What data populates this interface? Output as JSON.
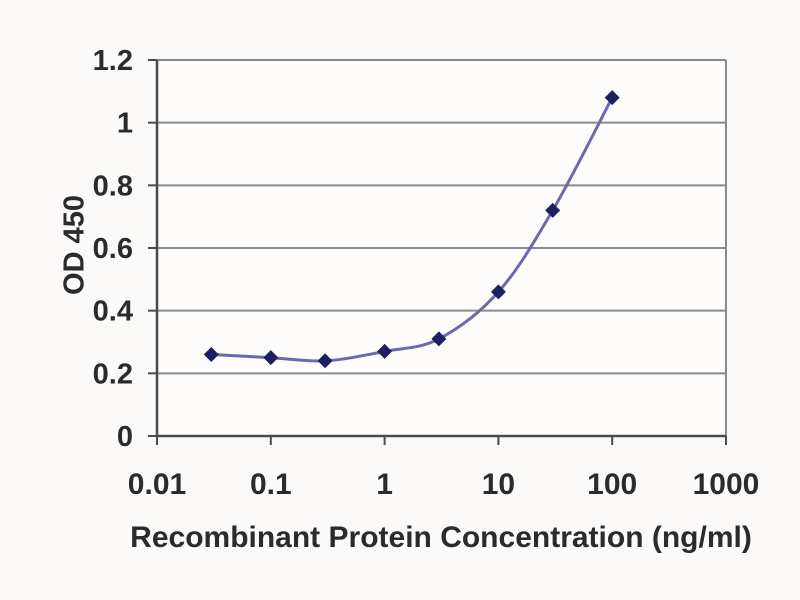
{
  "figure": {
    "kind": "elisa-standard-curve",
    "background": "#fbfaf8"
  },
  "chart_data": {
    "type": "line",
    "title": "",
    "xlabel": "Recombinant Protein Concentration (ng/ml)",
    "ylabel": "OD 450",
    "x_scale": "log",
    "x": [
      0.03,
      0.1,
      0.3,
      1,
      3,
      10,
      30,
      100
    ],
    "values": [
      0.26,
      0.25,
      0.24,
      0.27,
      0.31,
      0.46,
      0.72,
      1.08
    ],
    "xlim": [
      0.01,
      1000
    ],
    "ylim": [
      0,
      1.2
    ],
    "x_ticks": [
      "0.01",
      "0.1",
      "1",
      "10",
      "100",
      "1000"
    ],
    "x_tick_values": [
      0.01,
      0.1,
      1,
      10,
      100,
      1000
    ],
    "y_ticks": [
      "0",
      "0.2",
      "0.4",
      "0.6",
      "0.8",
      "1",
      "1.2"
    ],
    "y_tick_values": [
      0,
      0.2,
      0.4,
      0.6,
      0.8,
      1,
      1.2
    ],
    "grid": "horizontal",
    "legend": "none",
    "marker": "diamond",
    "colors": {
      "line": "#6b6bab",
      "marker": "#1e1e63",
      "grid": "#8a8a8a",
      "axis": "#4a4a4a",
      "text": "#2b2b2b",
      "plot_bg": "#fdfcfa"
    }
  }
}
